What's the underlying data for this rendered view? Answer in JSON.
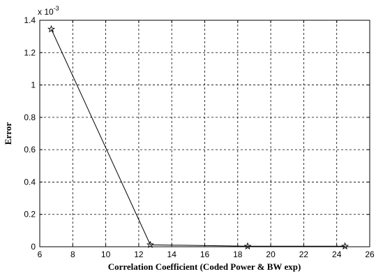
{
  "chart_data": {
    "type": "line",
    "xlabel": "Correlation Coefficient  (Coded Power & BW exp)",
    "ylabel": "Error",
    "y_exponent_label": "x 10",
    "y_exponent_power": "-3",
    "xlim": [
      6,
      26
    ],
    "ylim": [
      0,
      1.4
    ],
    "xticks": [
      "6",
      "8",
      "10",
      "12",
      "14",
      "16",
      "18",
      "20",
      "22",
      "24",
      "26"
    ],
    "yticks": [
      "0",
      "0.2",
      "0.4",
      "0.6",
      "0.8",
      "1",
      "1.2",
      "1.4"
    ],
    "grid": true,
    "marker": "star",
    "series": [
      {
        "x": [
          6.7,
          12.7,
          18.6,
          24.5
        ],
        "y": [
          1.345,
          0.012,
          0.003,
          0.003
        ]
      }
    ]
  }
}
